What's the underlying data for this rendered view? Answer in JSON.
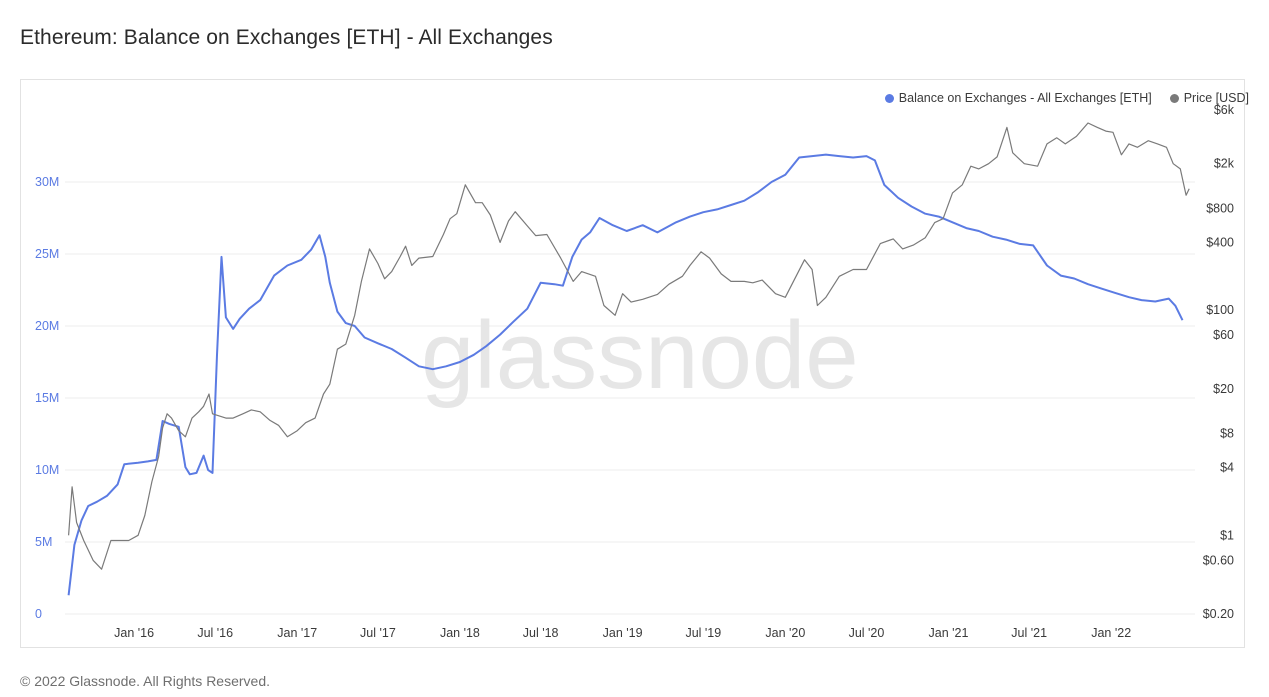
{
  "title": "Ethereum: Balance on Exchanges [ETH] - All Exchanges",
  "footer": "© 2022 Glassnode. All Rights Reserved.",
  "watermark": "glassnode",
  "colors": {
    "balance": "#5b7be3",
    "price": "#7a7a7a",
    "grid": "#ececec",
    "left_axis_text": "#5b7be3",
    "right_axis_text": "#3a3a3a"
  },
  "chart_data": {
    "type": "line",
    "x_ticks": [
      "Jan '16",
      "Jul '16",
      "Jan '17",
      "Jul '17",
      "Jan '18",
      "Jul '18",
      "Jan '19",
      "Jul '19",
      "Jan '20",
      "Jul '20",
      "Jan '21",
      "Jul '21",
      "Jan '22"
    ],
    "y_left_ticks": [
      "0",
      "5M",
      "10M",
      "15M",
      "20M",
      "25M",
      "30M"
    ],
    "y_right_ticks": [
      "$0.20",
      "$0.60",
      "$1",
      "$4",
      "$8",
      "$20",
      "$60",
      "$100",
      "$400",
      "$800",
      "$2k",
      "$6k"
    ],
    "y_left_range": [
      0,
      35000000
    ],
    "y_right_scale": "log",
    "y_right_range": [
      0.2,
      6000
    ],
    "grid": true,
    "legend_position": "top-right",
    "series": [
      {
        "name": "Balance on Exchanges - All Exchanges [ETH]",
        "axis": "left",
        "x": [
          "2015-08-07",
          "2015-08-20",
          "2015-09-05",
          "2015-09-20",
          "2015-10-10",
          "2015-11-01",
          "2015-11-25",
          "2015-12-10",
          "2016-01-10",
          "2016-02-01",
          "2016-02-20",
          "2016-03-05",
          "2016-03-20",
          "2016-04-10",
          "2016-04-25",
          "2016-05-05",
          "2016-05-20",
          "2016-06-05",
          "2016-06-15",
          "2016-06-25",
          "2016-07-05",
          "2016-07-15",
          "2016-07-25",
          "2016-08-10",
          "2016-08-25",
          "2016-09-15",
          "2016-10-10",
          "2016-11-10",
          "2016-12-10",
          "2017-01-10",
          "2017-02-01",
          "2017-02-20",
          "2017-03-05",
          "2017-03-15",
          "2017-04-01",
          "2017-04-20",
          "2017-05-10",
          "2017-06-01",
          "2017-07-01",
          "2017-08-01",
          "2017-09-01",
          "2017-10-01",
          "2017-11-01",
          "2017-12-01",
          "2018-01-01",
          "2018-02-01",
          "2018-03-01",
          "2018-04-01",
          "2018-05-01",
          "2018-06-01",
          "2018-07-01",
          "2018-08-01",
          "2018-08-20",
          "2018-09-10",
          "2018-10-01",
          "2018-10-20",
          "2018-11-10",
          "2018-12-10",
          "2019-01-10",
          "2019-02-15",
          "2019-03-20",
          "2019-05-01",
          "2019-06-01",
          "2019-07-01",
          "2019-08-01",
          "2019-09-01",
          "2019-10-01",
          "2019-11-01",
          "2019-12-01",
          "2020-01-01",
          "2020-02-01",
          "2020-03-01",
          "2020-04-01",
          "2020-05-01",
          "2020-06-01",
          "2020-07-01",
          "2020-07-20",
          "2020-08-10",
          "2020-09-10",
          "2020-10-10",
          "2020-11-10",
          "2020-12-10",
          "2021-01-10",
          "2021-02-10",
          "2021-03-10",
          "2021-04-10",
          "2021-05-10",
          "2021-06-10",
          "2021-07-10",
          "2021-08-10",
          "2021-09-10",
          "2021-10-10",
          "2021-11-10",
          "2021-12-10",
          "2022-01-10",
          "2022-02-10",
          "2022-03-10",
          "2022-04-10",
          "2022-05-10",
          "2022-05-25",
          "2022-06-10"
        ],
        "y": [
          1300000,
          4800000,
          6500000,
          7500000,
          7800000,
          8200000,
          9000000,
          10400000,
          10500000,
          10600000,
          10700000,
          13400000,
          13200000,
          13000000,
          10200000,
          9700000,
          9800000,
          11000000,
          10000000,
          9800000,
          18000000,
          24800000,
          20600000,
          19800000,
          20500000,
          21200000,
          21800000,
          23500000,
          24200000,
          24600000,
          25300000,
          26300000,
          24800000,
          23000000,
          21000000,
          20200000,
          20000000,
          19200000,
          18800000,
          18400000,
          17800000,
          17200000,
          17000000,
          17200000,
          17500000,
          18000000,
          18600000,
          19400000,
          20300000,
          21200000,
          23000000,
          22900000,
          22800000,
          24800000,
          26000000,
          26500000,
          27500000,
          27000000,
          26600000,
          27000000,
          26500000,
          27200000,
          27600000,
          27900000,
          28100000,
          28400000,
          28700000,
          29300000,
          30000000,
          30500000,
          31700000,
          31800000,
          31900000,
          31800000,
          31700000,
          31800000,
          31500000,
          29800000,
          28900000,
          28300000,
          27800000,
          27600000,
          27200000,
          26800000,
          26600000,
          26200000,
          26000000,
          25700000,
          25600000,
          24200000,
          23500000,
          23300000,
          22900000,
          22600000,
          22300000,
          22000000,
          21800000,
          21700000,
          21900000,
          21400000,
          20400000
        ]
      },
      {
        "name": "Price [USD]",
        "axis": "right",
        "x": [
          "2015-08-07",
          "2015-08-15",
          "2015-08-25",
          "2015-09-10",
          "2015-10-01",
          "2015-10-20",
          "2015-11-10",
          "2015-12-01",
          "2015-12-20",
          "2016-01-10",
          "2016-01-25",
          "2016-02-10",
          "2016-02-25",
          "2016-03-05",
          "2016-03-15",
          "2016-03-25",
          "2016-04-10",
          "2016-04-25",
          "2016-05-10",
          "2016-05-25",
          "2016-06-05",
          "2016-06-17",
          "2016-06-25",
          "2016-07-10",
          "2016-07-25",
          "2016-08-10",
          "2016-09-01",
          "2016-09-20",
          "2016-10-10",
          "2016-11-01",
          "2016-11-20",
          "2016-12-10",
          "2017-01-01",
          "2017-01-20",
          "2017-02-10",
          "2017-03-01",
          "2017-03-15",
          "2017-04-01",
          "2017-04-20",
          "2017-05-10",
          "2017-05-25",
          "2017-06-12",
          "2017-07-01",
          "2017-07-16",
          "2017-08-01",
          "2017-08-20",
          "2017-09-01",
          "2017-09-15",
          "2017-10-01",
          "2017-11-01",
          "2017-11-25",
          "2017-12-10",
          "2017-12-25",
          "2018-01-13",
          "2018-02-05",
          "2018-02-20",
          "2018-03-10",
          "2018-04-01",
          "2018-04-20",
          "2018-05-05",
          "2018-06-01",
          "2018-06-20",
          "2018-07-15",
          "2018-08-15",
          "2018-09-12",
          "2018-10-01",
          "2018-11-01",
          "2018-11-20",
          "2018-12-15",
          "2019-01-01",
          "2019-01-20",
          "2019-02-15",
          "2019-03-20",
          "2019-04-15",
          "2019-05-15",
          "2019-06-01",
          "2019-06-26",
          "2019-07-15",
          "2019-08-10",
          "2019-09-01",
          "2019-10-01",
          "2019-10-20",
          "2019-11-10",
          "2019-12-10",
          "2020-01-01",
          "2020-02-13",
          "2020-03-01",
          "2020-03-13",
          "2020-04-01",
          "2020-05-01",
          "2020-06-01",
          "2020-07-01",
          "2020-08-01",
          "2020-08-30",
          "2020-09-20",
          "2020-10-15",
          "2020-11-10",
          "2020-12-01",
          "2020-12-20",
          "2021-01-10",
          "2021-02-01",
          "2021-02-20",
          "2021-03-10",
          "2021-04-01",
          "2021-04-20",
          "2021-05-12",
          "2021-05-25",
          "2021-06-20",
          "2021-07-20",
          "2021-08-10",
          "2021-09-01",
          "2021-09-20",
          "2021-10-15",
          "2021-11-10",
          "2021-12-01",
          "2021-12-20",
          "2022-01-05",
          "2022-01-24",
          "2022-02-10",
          "2022-03-01",
          "2022-03-25",
          "2022-04-15",
          "2022-05-05",
          "2022-05-20",
          "2022-06-05",
          "2022-06-18",
          "2022-06-25"
        ],
        "y": [
          1.0,
          2.7,
          1.3,
          0.9,
          0.6,
          0.5,
          0.9,
          0.9,
          0.9,
          1.0,
          1.5,
          3.0,
          5.0,
          9.0,
          12.0,
          11.0,
          8.5,
          7.5,
          11.0,
          12.5,
          14.0,
          18.0,
          12.0,
          11.5,
          11.0,
          11.0,
          12.0,
          13.0,
          12.5,
          10.5,
          9.5,
          7.5,
          8.5,
          10.0,
          11.0,
          18.0,
          22.0,
          45.0,
          50.0,
          90.0,
          180.0,
          350.0,
          260.0,
          190.0,
          220.0,
          300.0,
          370.0,
          250.0,
          290.0,
          300.0,
          470.0,
          650.0,
          720.0,
          1300.0,
          900.0,
          900.0,
          700.0,
          400.0,
          620.0,
          750.0,
          560.0,
          460.0,
          470.0,
          290.0,
          180.0,
          220.0,
          200.0,
          110.0,
          90.0,
          140.0,
          118.0,
          125.0,
          138.0,
          170.0,
          200.0,
          250.0,
          330.0,
          290.0,
          210.0,
          180.0,
          180.0,
          175.0,
          185.0,
          140.0,
          130.0,
          280.0,
          230.0,
          110.0,
          130.0,
          200.0,
          230.0,
          230.0,
          390.0,
          430.0,
          350.0,
          380.0,
          440.0,
          600.0,
          650.0,
          1100.0,
          1300.0,
          1900.0,
          1800.0,
          2000.0,
          2300.0,
          4200.0,
          2500.0,
          2000.0,
          1900.0,
          3000.0,
          3400.0,
          3000.0,
          3500.0,
          4600.0,
          4200.0,
          3900.0,
          3800.0,
          2400.0,
          3000.0,
          2800.0,
          3200.0,
          3000.0,
          2800.0,
          2000.0,
          1800.0,
          1050.0,
          1200.0
        ]
      }
    ]
  }
}
